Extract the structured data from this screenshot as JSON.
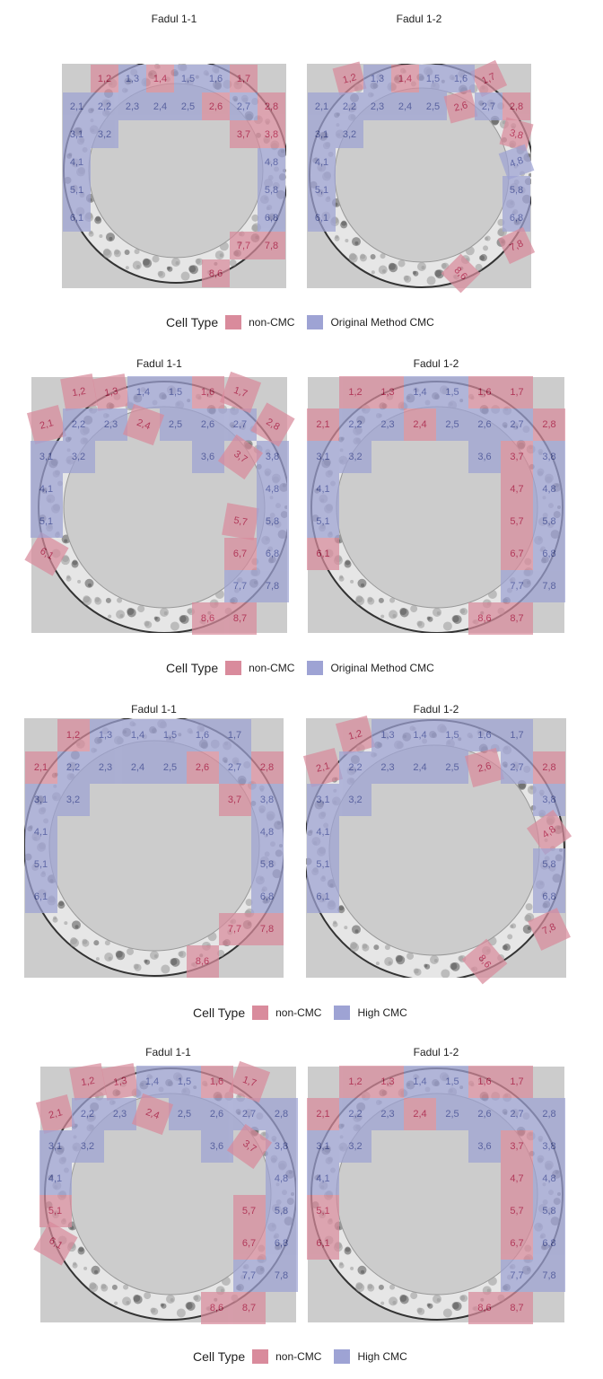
{
  "colors": {
    "noncmc": "#d98b9c",
    "cmc": "#9ea3d4",
    "noncmc_text": "#a8002e",
    "cmc_text": "#2d3a8f",
    "panel_bg": "#cccccc"
  },
  "legends": [
    {
      "title": "Cell Type",
      "noncmc_label": "non-CMC",
      "cmc_label": "Original Method CMC"
    },
    {
      "title": "Cell Type",
      "noncmc_label": "non-CMC",
      "cmc_label": "Original Method CMC"
    },
    {
      "title": "Cell Type",
      "noncmc_label": "non-CMC",
      "cmc_label": "High CMC"
    },
    {
      "title": "Cell Type",
      "noncmc_label": "non-CMC",
      "cmc_label": "High CMC"
    }
  ],
  "panels": [
    {
      "title": "Fadul 1-1",
      "cells": [
        {
          "label": "1,2",
          "type": "non"
        },
        {
          "label": "1,3",
          "type": "cmc"
        },
        {
          "label": "1,4",
          "type": "non"
        },
        {
          "label": "1,5",
          "type": "cmc"
        },
        {
          "label": "1,6",
          "type": "cmc"
        },
        {
          "label": "1,7",
          "type": "non"
        },
        {
          "label": "2,1",
          "type": "cmc"
        },
        {
          "label": "2,2",
          "type": "cmc"
        },
        {
          "label": "2,3",
          "type": "cmc"
        },
        {
          "label": "2,4",
          "type": "cmc"
        },
        {
          "label": "2,5",
          "type": "cmc"
        },
        {
          "label": "2,6",
          "type": "non"
        },
        {
          "label": "2,7",
          "type": "cmc"
        },
        {
          "label": "2,8",
          "type": "non"
        },
        {
          "label": "3,1",
          "type": "cmc"
        },
        {
          "label": "3,2",
          "type": "cmc"
        },
        {
          "label": "3,7",
          "type": "non"
        },
        {
          "label": "3,8",
          "type": "non"
        },
        {
          "label": "4,1",
          "type": "cmc"
        },
        {
          "label": "4,8",
          "type": "cmc"
        },
        {
          "label": "5,1",
          "type": "cmc"
        },
        {
          "label": "5,8",
          "type": "cmc"
        },
        {
          "label": "6,1",
          "type": "cmc"
        },
        {
          "label": "6,8",
          "type": "cmc"
        },
        {
          "label": "7,7",
          "type": "non"
        },
        {
          "label": "7,8",
          "type": "non"
        },
        {
          "label": "8,6",
          "type": "non"
        }
      ]
    },
    {
      "title": "Fadul 1-2",
      "cells": [
        {
          "label": "1,7",
          "type": "non"
        },
        {
          "label": "1,2",
          "type": "non"
        },
        {
          "label": "1,3",
          "type": "cmc"
        },
        {
          "label": "1,4",
          "type": "non"
        },
        {
          "label": "1,5",
          "type": "cmc"
        },
        {
          "label": "1,6",
          "type": "cmc"
        },
        {
          "label": "2,1",
          "type": "cmc"
        },
        {
          "label": "2,2",
          "type": "cmc"
        },
        {
          "label": "2,3",
          "type": "cmc"
        },
        {
          "label": "2,4",
          "type": "cmc"
        },
        {
          "label": "2,5",
          "type": "cmc"
        },
        {
          "label": "2,6",
          "type": "non"
        },
        {
          "label": "2,7",
          "type": "cmc"
        },
        {
          "label": "2,8",
          "type": "non"
        },
        {
          "label": "3,1",
          "type": "cmc"
        },
        {
          "label": "3,2",
          "type": "cmc"
        },
        {
          "label": "3,8",
          "type": "non"
        },
        {
          "label": "4,1",
          "type": "cmc"
        },
        {
          "label": "4,8",
          "type": "cmc"
        },
        {
          "label": "5,1",
          "type": "cmc"
        },
        {
          "label": "5,8",
          "type": "cmc"
        },
        {
          "label": "6,1",
          "type": "cmc"
        },
        {
          "label": "6,8",
          "type": "cmc"
        },
        {
          "label": "8,6",
          "type": "non"
        },
        {
          "label": "7,8",
          "type": "non"
        }
      ]
    },
    {
      "title": "Fadul 1-1",
      "cells": [
        {
          "label": "1,2",
          "type": "non"
        },
        {
          "label": "1,3",
          "type": "non"
        },
        {
          "label": "1,4",
          "type": "cmc"
        },
        {
          "label": "1,5",
          "type": "cmc"
        },
        {
          "label": "1,6",
          "type": "non"
        },
        {
          "label": "2,1",
          "type": "non"
        },
        {
          "label": "2,2",
          "type": "cmc"
        },
        {
          "label": "2,3",
          "type": "cmc"
        },
        {
          "label": "2,5",
          "type": "cmc"
        },
        {
          "label": "2,4",
          "type": "non"
        },
        {
          "label": "2,6",
          "type": "cmc"
        },
        {
          "label": "2,7",
          "type": "cmc"
        },
        {
          "label": "3,1",
          "type": "cmc"
        },
        {
          "label": "3,2",
          "type": "cmc"
        },
        {
          "label": "3,6",
          "type": "cmc"
        },
        {
          "label": "3,8",
          "type": "cmc"
        },
        {
          "label": "3,7",
          "type": "non"
        },
        {
          "label": "1,7",
          "type": "non"
        },
        {
          "label": "2,8",
          "type": "non"
        },
        {
          "label": "4,1",
          "type": "cmc"
        },
        {
          "label": "6,1",
          "type": "non"
        },
        {
          "label": "4,8",
          "type": "cmc"
        },
        {
          "label": "5,7",
          "type": "non"
        },
        {
          "label": "5,1",
          "type": "cmc"
        },
        {
          "label": "5,8",
          "type": "cmc"
        },
        {
          "label": "6,7",
          "type": "non"
        },
        {
          "label": "6,8",
          "type": "cmc"
        },
        {
          "label": "7,7",
          "type": "cmc"
        },
        {
          "label": "7,8",
          "type": "cmc"
        },
        {
          "label": "8,7",
          "type": "non"
        },
        {
          "label": "8,6",
          "type": "non"
        }
      ]
    },
    {
      "title": "Fadul 1-2",
      "cells": [
        {
          "label": "1,2",
          "type": "non"
        },
        {
          "label": "1,3",
          "type": "non"
        },
        {
          "label": "1,4",
          "type": "cmc"
        },
        {
          "label": "1,5",
          "type": "cmc"
        },
        {
          "label": "1,6",
          "type": "non"
        },
        {
          "label": "1,7",
          "type": "non"
        },
        {
          "label": "2,1",
          "type": "non"
        },
        {
          "label": "2,2",
          "type": "cmc"
        },
        {
          "label": "2,3",
          "type": "cmc"
        },
        {
          "label": "2,4",
          "type": "non"
        },
        {
          "label": "2,5",
          "type": "cmc"
        },
        {
          "label": "2,6",
          "type": "cmc"
        },
        {
          "label": "2,7",
          "type": "cmc"
        },
        {
          "label": "2,8",
          "type": "non"
        },
        {
          "label": "3,1",
          "type": "cmc"
        },
        {
          "label": "3,2",
          "type": "cmc"
        },
        {
          "label": "3,6",
          "type": "cmc"
        },
        {
          "label": "3,7",
          "type": "non"
        },
        {
          "label": "3,8",
          "type": "cmc"
        },
        {
          "label": "4,1",
          "type": "cmc"
        },
        {
          "label": "4,7",
          "type": "non"
        },
        {
          "label": "4,8",
          "type": "cmc"
        },
        {
          "label": "5,1",
          "type": "cmc"
        },
        {
          "label": "5,7",
          "type": "non"
        },
        {
          "label": "5,8",
          "type": "cmc"
        },
        {
          "label": "6,1",
          "type": "non"
        },
        {
          "label": "6,7",
          "type": "non"
        },
        {
          "label": "6,8",
          "type": "cmc"
        },
        {
          "label": "7,7",
          "type": "cmc"
        },
        {
          "label": "7,8",
          "type": "cmc"
        },
        {
          "label": "8,6",
          "type": "non"
        },
        {
          "label": "8,7",
          "type": "non"
        }
      ]
    },
    {
      "title": "Fadul 1-1",
      "cells": [
        {
          "label": "1,2",
          "type": "non"
        },
        {
          "label": "1,3",
          "type": "cmc"
        },
        {
          "label": "1,4",
          "type": "cmc"
        },
        {
          "label": "1,5",
          "type": "cmc"
        },
        {
          "label": "1,6",
          "type": "cmc"
        },
        {
          "label": "1,7",
          "type": "cmc"
        },
        {
          "label": "2,1",
          "type": "non"
        },
        {
          "label": "2,2",
          "type": "cmc"
        },
        {
          "label": "2,3",
          "type": "cmc"
        },
        {
          "label": "2,4",
          "type": "cmc"
        },
        {
          "label": "2,5",
          "type": "cmc"
        },
        {
          "label": "2,6",
          "type": "non"
        },
        {
          "label": "2,7",
          "type": "cmc"
        },
        {
          "label": "2,8",
          "type": "non"
        },
        {
          "label": "3,1",
          "type": "cmc"
        },
        {
          "label": "3,2",
          "type": "cmc"
        },
        {
          "label": "3,7",
          "type": "non"
        },
        {
          "label": "3,8",
          "type": "cmc"
        },
        {
          "label": "4,1",
          "type": "cmc"
        },
        {
          "label": "4,8",
          "type": "cmc"
        },
        {
          "label": "5,1",
          "type": "cmc"
        },
        {
          "label": "5,8",
          "type": "cmc"
        },
        {
          "label": "6,1",
          "type": "cmc"
        },
        {
          "label": "6,8",
          "type": "cmc"
        },
        {
          "label": "7,7",
          "type": "non"
        },
        {
          "label": "7,8",
          "type": "non"
        },
        {
          "label": "8,6",
          "type": "non"
        }
      ]
    },
    {
      "title": "Fadul 1-2",
      "cells": [
        {
          "label": "1,2",
          "type": "non"
        },
        {
          "label": "2,1",
          "type": "non"
        },
        {
          "label": "1,3",
          "type": "cmc"
        },
        {
          "label": "1,4",
          "type": "cmc"
        },
        {
          "label": "1,5",
          "type": "cmc"
        },
        {
          "label": "1,6",
          "type": "cmc"
        },
        {
          "label": "1,7",
          "type": "cmc"
        },
        {
          "label": "2,2",
          "type": "cmc"
        },
        {
          "label": "2,3",
          "type": "cmc"
        },
        {
          "label": "2,4",
          "type": "cmc"
        },
        {
          "label": "2,5",
          "type": "cmc"
        },
        {
          "label": "2,6",
          "type": "non"
        },
        {
          "label": "2,7",
          "type": "cmc"
        },
        {
          "label": "2,8",
          "type": "non"
        },
        {
          "label": "3,1",
          "type": "cmc"
        },
        {
          "label": "3,2",
          "type": "cmc"
        },
        {
          "label": "3,8",
          "type": "cmc"
        },
        {
          "label": "4,1",
          "type": "cmc"
        },
        {
          "label": "4,8",
          "type": "non"
        },
        {
          "label": "5,1",
          "type": "cmc"
        },
        {
          "label": "5,8",
          "type": "cmc"
        },
        {
          "label": "6,1",
          "type": "cmc"
        },
        {
          "label": "6,8",
          "type": "cmc"
        },
        {
          "label": "8,6",
          "type": "non"
        },
        {
          "label": "7,8",
          "type": "non"
        }
      ]
    },
    {
      "title": "Fadul 1-1",
      "cells": [
        {
          "label": "1,2",
          "type": "non"
        },
        {
          "label": "1,3",
          "type": "non"
        },
        {
          "label": "1,4",
          "type": "cmc"
        },
        {
          "label": "1,5",
          "type": "cmc"
        },
        {
          "label": "1,6",
          "type": "non"
        },
        {
          "label": "2,1",
          "type": "non"
        },
        {
          "label": "2,2",
          "type": "cmc"
        },
        {
          "label": "2,3",
          "type": "cmc"
        },
        {
          "label": "2,5",
          "type": "cmc"
        },
        {
          "label": "2,4",
          "type": "non"
        },
        {
          "label": "2,6",
          "type": "cmc"
        },
        {
          "label": "2,7",
          "type": "cmc"
        },
        {
          "label": "2,8",
          "type": "cmc"
        },
        {
          "label": "3,1",
          "type": "cmc"
        },
        {
          "label": "3,2",
          "type": "cmc"
        },
        {
          "label": "3,6",
          "type": "cmc"
        },
        {
          "label": "3,8",
          "type": "cmc"
        },
        {
          "label": "3,7",
          "type": "non"
        },
        {
          "label": "1,7",
          "type": "non"
        },
        {
          "label": "4,1",
          "type": "cmc"
        },
        {
          "label": "6,1",
          "type": "non"
        },
        {
          "label": "4,8",
          "type": "cmc"
        },
        {
          "label": "5,7",
          "type": "non"
        },
        {
          "label": "5,1",
          "type": "non"
        },
        {
          "label": "5,8",
          "type": "cmc"
        },
        {
          "label": "6,7",
          "type": "non"
        },
        {
          "label": "6,8",
          "type": "cmc"
        },
        {
          "label": "7,7",
          "type": "cmc"
        },
        {
          "label": "7,8",
          "type": "cmc"
        },
        {
          "label": "8,7",
          "type": "non"
        },
        {
          "label": "8,6",
          "type": "non"
        }
      ]
    },
    {
      "title": "Fadul 1-2",
      "cells": [
        {
          "label": "1,2",
          "type": "non"
        },
        {
          "label": "1,3",
          "type": "non"
        },
        {
          "label": "1,4",
          "type": "cmc"
        },
        {
          "label": "1,5",
          "type": "cmc"
        },
        {
          "label": "1,6",
          "type": "non"
        },
        {
          "label": "1,7",
          "type": "non"
        },
        {
          "label": "2,1",
          "type": "non"
        },
        {
          "label": "2,2",
          "type": "cmc"
        },
        {
          "label": "2,3",
          "type": "cmc"
        },
        {
          "label": "2,4",
          "type": "non"
        },
        {
          "label": "2,5",
          "type": "cmc"
        },
        {
          "label": "2,6",
          "type": "cmc"
        },
        {
          "label": "2,7",
          "type": "cmc"
        },
        {
          "label": "2,8",
          "type": "cmc"
        },
        {
          "label": "3,1",
          "type": "cmc"
        },
        {
          "label": "3,2",
          "type": "cmc"
        },
        {
          "label": "3,6",
          "type": "cmc"
        },
        {
          "label": "3,7",
          "type": "non"
        },
        {
          "label": "3,8",
          "type": "cmc"
        },
        {
          "label": "4,1",
          "type": "cmc"
        },
        {
          "label": "4,7",
          "type": "non"
        },
        {
          "label": "4,8",
          "type": "cmc"
        },
        {
          "label": "5,1",
          "type": "non"
        },
        {
          "label": "5,7",
          "type": "non"
        },
        {
          "label": "5,8",
          "type": "cmc"
        },
        {
          "label": "6,1",
          "type": "non"
        },
        {
          "label": "6,7",
          "type": "non"
        },
        {
          "label": "6,8",
          "type": "cmc"
        },
        {
          "label": "7,7",
          "type": "cmc"
        },
        {
          "label": "7,8",
          "type": "cmc"
        },
        {
          "label": "8,6",
          "type": "non"
        },
        {
          "label": "8,7",
          "type": "non"
        }
      ]
    }
  ]
}
